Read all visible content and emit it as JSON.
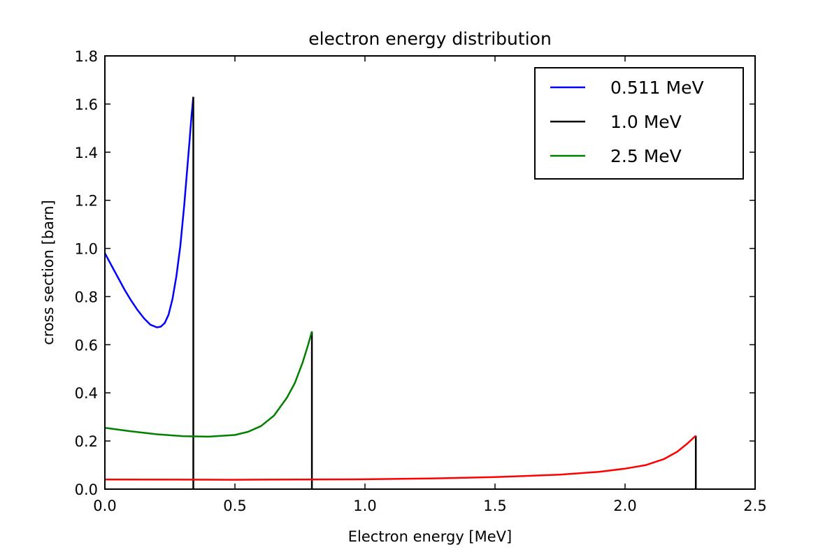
{
  "chart_data": {
    "type": "line",
    "title": "electron energy distribution",
    "xlabel": "Electron energy [MeV]",
    "ylabel": "cross section [barn]",
    "xlim": [
      0.0,
      2.5
    ],
    "ylim": [
      0.0,
      1.8
    ],
    "xticks": [
      "0.0",
      "0.5",
      "1.0",
      "1.5",
      "2.0",
      "2.5"
    ],
    "yticks": [
      "0.0",
      "0.2",
      "0.4",
      "0.6",
      "0.8",
      "1.0",
      "1.2",
      "1.4",
      "1.6",
      "1.8"
    ],
    "grid": false,
    "legend_position": "top-right",
    "series": [
      {
        "name": "0.511 MeV",
        "color": "#0000ff",
        "x": [
          0.0,
          0.025,
          0.05,
          0.075,
          0.1,
          0.125,
          0.15,
          0.175,
          0.2,
          0.215,
          0.23,
          0.245,
          0.26,
          0.275,
          0.29,
          0.305,
          0.315,
          0.325,
          0.333,
          0.34
        ],
        "y": [
          0.98,
          0.93,
          0.88,
          0.83,
          0.785,
          0.745,
          0.71,
          0.683,
          0.672,
          0.675,
          0.69,
          0.725,
          0.79,
          0.885,
          1.01,
          1.18,
          1.31,
          1.44,
          1.55,
          1.63
        ]
      },
      {
        "name": "1.0 MeV",
        "color": "#000000",
        "x": [
          0.34,
          0.34,
          null,
          0.796,
          0.796,
          null,
          2.272,
          2.272
        ],
        "y": [
          0.0,
          1.63,
          null,
          0.0,
          0.655,
          null,
          0.0,
          0.222
        ]
      },
      {
        "name": "2.5 MeV",
        "color": "#008000",
        "x": [
          0.0,
          0.1,
          0.2,
          0.3,
          0.4,
          0.5,
          0.55,
          0.6,
          0.65,
          0.7,
          0.73,
          0.76,
          0.78,
          0.796
        ],
        "y": [
          0.255,
          0.24,
          0.228,
          0.22,
          0.218,
          0.225,
          0.238,
          0.262,
          0.305,
          0.38,
          0.44,
          0.525,
          0.595,
          0.655
        ]
      },
      {
        "color": "#ff0000",
        "x": [
          0.0,
          0.5,
          1.0,
          1.25,
          1.5,
          1.75,
          1.9,
          2.0,
          2.08,
          2.15,
          2.2,
          2.24,
          2.272
        ],
        "y": [
          0.04,
          0.039,
          0.041,
          0.044,
          0.05,
          0.06,
          0.072,
          0.085,
          0.1,
          0.125,
          0.155,
          0.19,
          0.222
        ]
      }
    ]
  }
}
